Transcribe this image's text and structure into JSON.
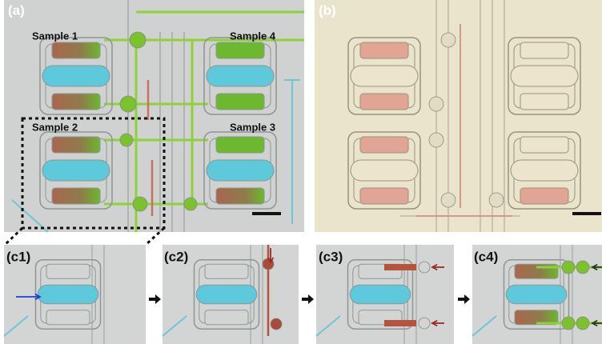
{
  "panel_a": {
    "label": "(a)",
    "samples": [
      "Sample 1",
      "Sample 4",
      "Sample 2",
      "Sample 3"
    ]
  },
  "panel_b": {
    "label": "(b)"
  },
  "panels_c": [
    "(c1)",
    "(c2)",
    "(c3)",
    "(c4)"
  ]
}
